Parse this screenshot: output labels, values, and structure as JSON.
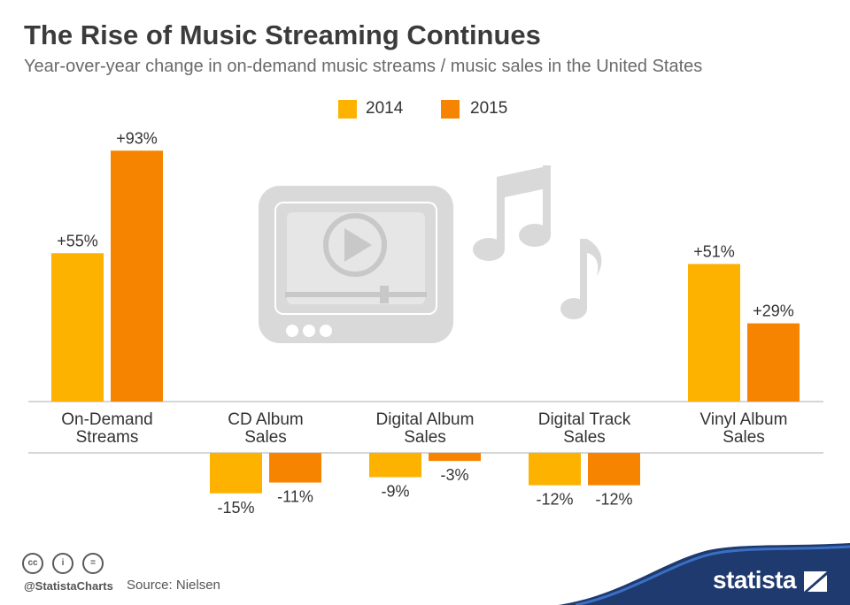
{
  "title": "The Rise of Music Streaming Continues",
  "subtitle": "Year-over-year change in on-demand music streams / music sales in the United States",
  "legend": [
    {
      "label": "2014",
      "color": "#fdb200"
    },
    {
      "label": "2015",
      "color": "#f68400"
    }
  ],
  "chart_data": {
    "type": "bar",
    "categories_lines": [
      [
        "On-Demand",
        "Streams"
      ],
      [
        "CD Album",
        "Sales"
      ],
      [
        "Digital Album",
        "Sales"
      ],
      [
        "Digital Track",
        "Sales"
      ],
      [
        "Vinyl Album",
        "Sales"
      ]
    ],
    "categories": [
      "On-Demand Streams",
      "CD Album Sales",
      "Digital Album Sales",
      "Digital Track Sales",
      "Vinyl Album Sales"
    ],
    "series": [
      {
        "name": "2014",
        "color": "#fdb200",
        "values": [
          55,
          -15,
          -9,
          -12,
          51
        ],
        "labels": [
          "+55%",
          "-15%",
          "-9%",
          "-12%",
          "+51%"
        ]
      },
      {
        "name": "2015",
        "color": "#f68400",
        "values": [
          93,
          -11,
          -3,
          -12,
          29
        ],
        "labels": [
          "+93%",
          "-11%",
          "-3%",
          "-12%",
          "+29%"
        ]
      }
    ],
    "unit": "%"
  },
  "illustration": {
    "icons": [
      "video-player-icon",
      "music-note-icon"
    ]
  },
  "footer": {
    "handle": "@StatistaCharts",
    "source": "Source: Nielsen",
    "license_icons": [
      "cc",
      "by",
      "nd"
    ],
    "license_glyphs": [
      "cc",
      "i",
      "="
    ],
    "brand": "statista"
  },
  "colors": {
    "title": "#3b3b3b",
    "brand_band": "#1e3a6e"
  }
}
